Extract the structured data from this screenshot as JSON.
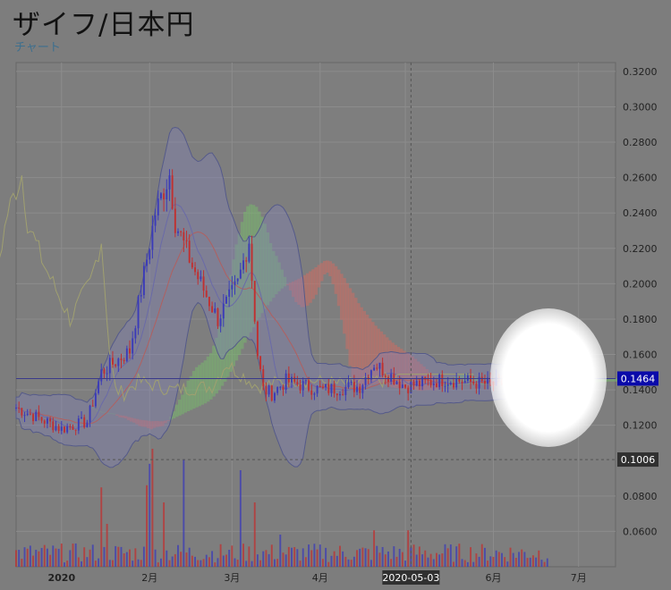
{
  "header": {
    "title": "ザイフ/日本円",
    "subtitle": "チャート"
  },
  "colors": {
    "up": "#3b3bb8",
    "down": "#c03030",
    "axis_bg": "#808080",
    "last_price_bg": "#0a0aaa",
    "crosshair_bg": "#303030"
  },
  "chart_data": {
    "type": "candlestick",
    "ylim": [
      0.04,
      0.325
    ],
    "y_ticks": [
      "0.3200",
      "0.3000",
      "0.2800",
      "0.2600",
      "0.2400",
      "0.2200",
      "0.2000",
      "0.1800",
      "0.1600",
      "0.1400",
      "0.1200",
      "0.1006",
      "0.0800",
      "0.0600"
    ],
    "y_tick_values": [
      0.32,
      0.3,
      0.28,
      0.26,
      0.24,
      0.22,
      0.2,
      0.18,
      0.16,
      0.14,
      0.12,
      0.1006,
      0.08,
      0.06
    ],
    "x_ticks": [
      "2020",
      "2月",
      "3月",
      "4月",
      "5月",
      "6月",
      "7月"
    ],
    "x_tick_dates": [
      "2020-01-01",
      "2020-02-01",
      "2020-03-01",
      "2020-04-01",
      "2020-05-01",
      "2020-06-01",
      "2020-07-01"
    ],
    "x_range": [
      "2019-12-16",
      "2020-07-14"
    ],
    "last_price": "0.1464",
    "last_price_value": 0.1464,
    "crosshair_price": "0.1006",
    "crosshair_price_value": 0.1006,
    "crosshair_date": "2020-05-03",
    "key_points": [
      {
        "date": "2019-12-16",
        "close": 0.13
      },
      {
        "date": "2020-01-01",
        "close": 0.118
      },
      {
        "date": "2020-01-10",
        "close": 0.122
      },
      {
        "date": "2020-01-15",
        "close": 0.15
      },
      {
        "date": "2020-01-25",
        "close": 0.162
      },
      {
        "date": "2020-02-03",
        "close": 0.24
      },
      {
        "date": "2020-02-08",
        "close": 0.262
      },
      {
        "date": "2020-02-10",
        "close": 0.235
      },
      {
        "date": "2020-02-16",
        "close": 0.21
      },
      {
        "date": "2020-02-25",
        "close": 0.18
      },
      {
        "date": "2020-03-03",
        "close": 0.2
      },
      {
        "date": "2020-03-07",
        "close": 0.225
      },
      {
        "date": "2020-03-10",
        "close": 0.16
      },
      {
        "date": "2020-03-12",
        "close": 0.14
      },
      {
        "date": "2020-03-15",
        "close": 0.138
      },
      {
        "date": "2020-03-20",
        "close": 0.145
      },
      {
        "date": "2020-04-01",
        "close": 0.14
      },
      {
        "date": "2020-04-15",
        "close": 0.142
      },
      {
        "date": "2020-04-20",
        "close": 0.155
      },
      {
        "date": "2020-05-01",
        "close": 0.142
      },
      {
        "date": "2020-05-15",
        "close": 0.146
      },
      {
        "date": "2020-06-01",
        "close": 0.143
      },
      {
        "date": "2020-06-20",
        "close": 0.1464
      }
    ],
    "volume_spikes": [
      {
        "date": "2020-01-15",
        "volume": 0.37
      },
      {
        "date": "2020-01-17",
        "volume": 0.2
      },
      {
        "date": "2020-01-31",
        "volume": 0.38
      },
      {
        "date": "2020-02-01",
        "volume": 0.48
      },
      {
        "date": "2020-02-02",
        "volume": 0.55
      },
      {
        "date": "2020-02-06",
        "volume": 0.3
      },
      {
        "date": "2020-02-13",
        "volume": 0.5
      },
      {
        "date": "2020-03-04",
        "volume": 0.45
      },
      {
        "date": "2020-03-09",
        "volume": 0.3
      },
      {
        "date": "2020-03-18",
        "volume": 0.15
      },
      {
        "date": "2020-04-20",
        "volume": 0.17
      },
      {
        "date": "2020-05-02",
        "volume": 0.17
      }
    ],
    "series": [
      {
        "role": "bollinger_bands"
      },
      {
        "role": "ichimoku_cloud"
      },
      {
        "role": "moving_averages"
      },
      {
        "role": "volume"
      }
    ]
  }
}
